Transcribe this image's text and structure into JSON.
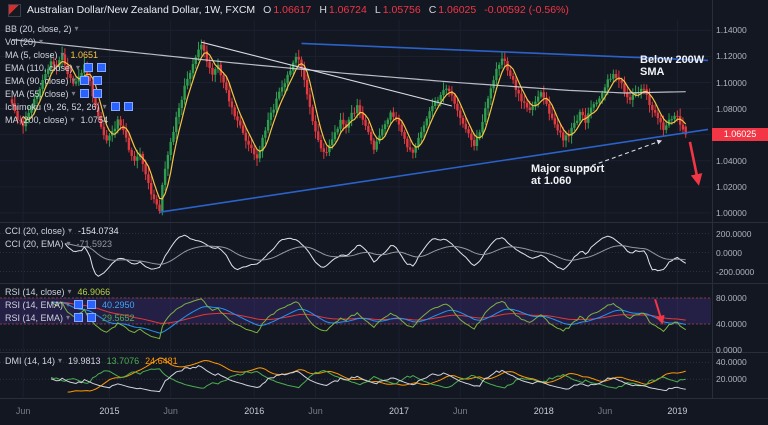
{
  "colors": {
    "up": "#2f9e4f",
    "down": "#e0393f",
    "ma_fast": "#f5c542",
    "ma_slow": "#d8dbe3",
    "trend_blue": "#2a62c9",
    "accent_down": "#f23645"
  },
  "header": {
    "title": "Australian Dollar/New Zealand Dollar, 1W, FXCM",
    "o_label": "O",
    "o": "1.06617",
    "h_label": "H",
    "h": "1.06724",
    "l_label": "L",
    "l": "1.05756",
    "c_label": "C",
    "c": "1.06025",
    "change": "-0.00592 (-0.56%)"
  },
  "legends": {
    "main": [
      {
        "label": "BB (20, close, 2)"
      },
      {
        "label": "Vol (20)"
      },
      {
        "label": "MA (5, close)",
        "values": [
          {
            "text": "1.0651",
            "color": "#f5c542"
          }
        ]
      },
      {
        "label": "EMA (110, close)",
        "selected": true
      },
      {
        "label": "EMA (90, close)",
        "selected": true
      },
      {
        "label": "EMA (55, close)",
        "selected": true
      },
      {
        "label": "Ichimoku (9, 26, 52, 26)",
        "selected": true
      },
      {
        "label": "MA (200, close)",
        "values": [
          {
            "text": "1.0754",
            "color": "#d1d4dc"
          }
        ]
      }
    ],
    "cci": [
      {
        "label": "CCI (20, close)",
        "values": [
          {
            "text": "-154.0734",
            "color": "#e0e3eb"
          }
        ]
      },
      {
        "label": "CCI (20, EMA)",
        "values": [
          {
            "text": "-71.5923",
            "color": "#9598a1"
          }
        ]
      }
    ],
    "rsi": [
      {
        "label": "RSI (14, close)",
        "values": [
          {
            "text": "46.9066",
            "color": "#b8d344"
          }
        ]
      },
      {
        "label": "RSI (14, EMA)",
        "selected": true,
        "values": [
          {
            "text": "40.2950",
            "color": "#42a5f5"
          }
        ]
      },
      {
        "label": "RSI (14, EMA)",
        "selected": true,
        "values": [
          {
            "text": "29.5652",
            "color": "#4caf50"
          }
        ]
      }
    ],
    "dmi": [
      {
        "label": "DMI (14, 14)",
        "values": [
          {
            "text": "19.9813",
            "color": "#d1d4dc"
          },
          {
            "text": "13.7076",
            "color": "#4caf50"
          },
          {
            "text": "24.6481",
            "color": "#ff9800"
          }
        ]
      }
    ]
  },
  "annotations": {
    "below_sma": {
      "line1": "Below 200W",
      "line2": "SMA"
    },
    "support": {
      "line1": "Major support",
      "line2": "at 1.060"
    }
  },
  "chart_data": {
    "type": "candlestick",
    "title": "Australian Dollar/New Zealand Dollar, 1W, FXCM",
    "timeframe": "1W",
    "last_candle": {
      "o": 1.06617,
      "h": 1.06724,
      "l": 1.05756,
      "c": 1.06025
    },
    "change": "-0.00592 (-0.56%)",
    "price_axis": {
      "ticks": [
        "1.14000",
        "1.12000",
        "1.10000",
        "1.08000",
        "1.06000",
        "1.04000",
        "1.02000",
        "1.00000"
      ],
      "last_label": "1.06025",
      "range": [
        0.993,
        1.148
      ]
    },
    "x_axis": {
      "labels": [
        {
          "t": 4,
          "label": "Jun",
          "minor": true
        },
        {
          "t": 35,
          "label": "2015",
          "minor": false
        },
        {
          "t": 57,
          "label": "Jun",
          "minor": true
        },
        {
          "t": 87,
          "label": "2016",
          "minor": false
        },
        {
          "t": 109,
          "label": "Jun",
          "minor": true
        },
        {
          "t": 139,
          "label": "2017",
          "minor": false
        },
        {
          "t": 161,
          "label": "Jun",
          "minor": true
        },
        {
          "t": 191,
          "label": "2018",
          "minor": false
        },
        {
          "t": 213,
          "label": "Jun",
          "minor": true
        },
        {
          "t": 239,
          "label": "2019",
          "minor": false
        }
      ]
    },
    "price_path_anchors": [
      [
        0,
        1.085
      ],
      [
        2,
        1.072
      ],
      [
        4,
        1.066
      ],
      [
        6,
        1.076
      ],
      [
        8,
        1.086
      ],
      [
        10,
        1.096
      ],
      [
        12,
        1.106
      ],
      [
        14,
        1.118
      ],
      [
        16,
        1.112
      ],
      [
        18,
        1.123
      ],
      [
        20,
        1.108
      ],
      [
        22,
        1.098
      ],
      [
        24,
        1.106
      ],
      [
        26,
        1.112
      ],
      [
        28,
        1.1
      ],
      [
        30,
        1.08
      ],
      [
        32,
        1.066
      ],
      [
        34,
        1.056
      ],
      [
        36,
        1.061
      ],
      [
        38,
        1.071
      ],
      [
        40,
        1.064
      ],
      [
        42,
        1.05
      ],
      [
        44,
        1.041
      ],
      [
        46,
        1.046
      ],
      [
        48,
        1.03
      ],
      [
        50,
        1.015
      ],
      [
        52,
        1.006
      ],
      [
        53,
        1.001
      ],
      [
        54,
        1.02
      ],
      [
        56,
        1.046
      ],
      [
        58,
        1.062
      ],
      [
        60,
        1.081
      ],
      [
        62,
        1.096
      ],
      [
        64,
        1.106
      ],
      [
        66,
        1.12
      ],
      [
        68,
        1.128
      ],
      [
        70,
        1.118
      ],
      [
        72,
        1.106
      ],
      [
        74,
        1.112
      ],
      [
        76,
        1.1
      ],
      [
        78,
        1.086
      ],
      [
        80,
        1.076
      ],
      [
        82,
        1.066
      ],
      [
        84,
        1.056
      ],
      [
        86,
        1.048
      ],
      [
        88,
        1.042
      ],
      [
        90,
        1.056
      ],
      [
        92,
        1.071
      ],
      [
        94,
        1.081
      ],
      [
        96,
        1.091
      ],
      [
        98,
        1.101
      ],
      [
        100,
        1.111
      ],
      [
        102,
        1.121
      ],
      [
        104,
        1.111
      ],
      [
        106,
        1.091
      ],
      [
        108,
        1.071
      ],
      [
        110,
        1.056
      ],
      [
        112,
        1.045
      ],
      [
        114,
        1.052
      ],
      [
        116,
        1.061
      ],
      [
        118,
        1.071
      ],
      [
        120,
        1.066
      ],
      [
        122,
        1.076
      ],
      [
        124,
        1.081
      ],
      [
        126,
        1.071
      ],
      [
        128,
        1.061
      ],
      [
        130,
        1.048
      ],
      [
        132,
        1.058
      ],
      [
        134,
        1.068
      ],
      [
        136,
        1.076
      ],
      [
        138,
        1.071
      ],
      [
        140,
        1.061
      ],
      [
        142,
        1.051
      ],
      [
        144,
        1.045
      ],
      [
        146,
        1.056
      ],
      [
        148,
        1.066
      ],
      [
        150,
        1.076
      ],
      [
        152,
        1.086
      ],
      [
        154,
        1.091
      ],
      [
        156,
        1.096
      ],
      [
        158,
        1.089
      ],
      [
        160,
        1.079
      ],
      [
        162,
        1.069
      ],
      [
        164,
        1.059
      ],
      [
        166,
        1.052
      ],
      [
        168,
        1.063
      ],
      [
        170,
        1.079
      ],
      [
        172,
        1.096
      ],
      [
        174,
        1.109
      ],
      [
        176,
        1.119
      ],
      [
        178,
        1.111
      ],
      [
        180,
        1.101
      ],
      [
        182,
        1.091
      ],
      [
        184,
        1.084
      ],
      [
        186,
        1.078
      ],
      [
        188,
        1.086
      ],
      [
        190,
        1.091
      ],
      [
        192,
        1.083
      ],
      [
        194,
        1.073
      ],
      [
        196,
        1.064
      ],
      [
        198,
        1.056
      ],
      [
        200,
        1.061
      ],
      [
        202,
        1.069
      ],
      [
        204,
        1.076
      ],
      [
        206,
        1.071
      ],
      [
        208,
        1.079
      ],
      [
        210,
        1.086
      ],
      [
        212,
        1.093
      ],
      [
        214,
        1.101
      ],
      [
        216,
        1.108
      ],
      [
        218,
        1.101
      ],
      [
        220,
        1.094
      ],
      [
        222,
        1.086
      ],
      [
        224,
        1.091
      ],
      [
        226,
        1.097
      ],
      [
        228,
        1.089
      ],
      [
        230,
        1.079
      ],
      [
        232,
        1.071
      ],
      [
        234,
        1.065
      ],
      [
        236,
        1.071
      ],
      [
        238,
        1.076
      ],
      [
        240,
        1.069
      ],
      [
        241,
        1.064
      ],
      [
        242,
        1.06025
      ]
    ],
    "sma200_anchors": [
      [
        0,
        1.133
      ],
      [
        40,
        1.124
      ],
      [
        80,
        1.115
      ],
      [
        120,
        1.107
      ],
      [
        160,
        1.1
      ],
      [
        200,
        1.094
      ],
      [
        220,
        1.092
      ],
      [
        242,
        1.093
      ]
    ],
    "trendlines": [
      {
        "name": "descending-resistance-line",
        "from": [
          104,
          1.13
        ],
        "to": [
          250,
          1.117
        ],
        "color": "#2a62c9",
        "width": 1.6
      },
      {
        "name": "ascending-support-line",
        "from": [
          53,
          1.0005
        ],
        "to": [
          250,
          1.064
        ],
        "color": "#2a62c9",
        "width": 1.6
      },
      {
        "name": "broken-white-trendline",
        "from": [
          68,
          1.131
        ],
        "to": [
          158,
          1.082
        ],
        "color": "#d8dbe3",
        "width": 1.1
      }
    ],
    "arrows": [
      {
        "name": "breakdown-arrow",
        "pane": "main",
        "from": [
          243.5,
          1.0545
        ],
        "to": [
          246.5,
          1.0235
        ],
        "color": "#f23645",
        "width": 2.6,
        "marker": "m-red"
      },
      {
        "name": "support-pointer-arrow",
        "pane": "main",
        "from": [
          206,
          1.0345
        ],
        "to": [
          233,
          1.0552
        ],
        "color": "#d9dde8",
        "width": 1.1,
        "dash": "4,3",
        "marker": "m-light"
      },
      {
        "name": "rsi-down-arrow",
        "pane": "rsi",
        "from": [
          231,
          78
        ],
        "to": [
          233.5,
          43
        ],
        "color": "#f23645",
        "width": 2,
        "marker": "m-red"
      }
    ],
    "cci": {
      "ticks": [
        "200.0000",
        "0.0000",
        "-200.0000"
      ],
      "range": [
        -300,
        300
      ],
      "values": {
        "cci": "-154.0734",
        "cci_ema": "-71.5923"
      }
    },
    "rsi": {
      "ticks": [
        "80.0000",
        "40.0000",
        "0.0000"
      ],
      "range": [
        0,
        100
      ],
      "band": [
        40,
        80
      ],
      "values": {
        "rsi": "46.9066",
        "ema1": "40.2950",
        "ema2": "29.5652"
      }
    },
    "dmi": {
      "ticks": [
        "40.0000",
        "20.0000"
      ],
      "range": [
        0,
        50
      ],
      "values": [
        "19.9813",
        "13.7076",
        "24.6481"
      ]
    }
  }
}
